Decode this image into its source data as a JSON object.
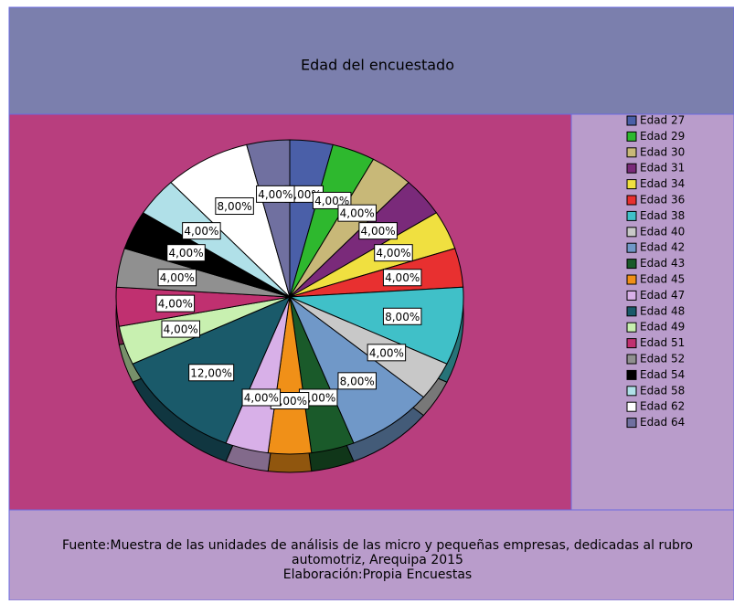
{
  "chart_data": {
    "type": "pie",
    "title": "Edad del encuestado",
    "categories": [
      "Edad 27",
      "Edad 29",
      "Edad 30",
      "Edad 31",
      "Edad 34",
      "Edad 36",
      "Edad 38",
      "Edad 40",
      "Edad 42",
      "Edad 43",
      "Edad 45",
      "Edad 47",
      "Edad 48",
      "Edad 49",
      "Edad 51",
      "Edad 52",
      "Edad 54",
      "Edad 58",
      "Edad 62",
      "Edad 64"
    ],
    "values": [
      4,
      4,
      4,
      4,
      4,
      4,
      8,
      4,
      8,
      4,
      4,
      4,
      12,
      4,
      4,
      4,
      4,
      4,
      8,
      4
    ],
    "value_labels": [
      "4,00%",
      "4,00%",
      "4,00%",
      "4,00%",
      "4,00%",
      "4,00%",
      "8,00%",
      "4,00%",
      "8,00%",
      "4,00%",
      "4,00%",
      "4,00%",
      "12,00%",
      "4,00%",
      "4,00%",
      "4,00%",
      "4,00%",
      "4,00%",
      "8,00%",
      "4,00%"
    ],
    "colors": [
      "#4a5fa8",
      "#2eb82e",
      "#c8b878",
      "#7a2a7a",
      "#f0e040",
      "#e83030",
      "#40c0c8",
      "#c8c8c8",
      "#7098c8",
      "#1a5a2a",
      "#f09018",
      "#d8b0e8",
      "#1a5a6a",
      "#c8f0b0",
      "#c03070",
      "#909090",
      "#000000",
      "#b0e0e8",
      "#ffffff",
      "#7070a0"
    ],
    "footnote": [
      "Fuente:Muestra de las unidades de análisis de las micro y pequeñas empresas, dedicadas al rubro",
      "automotriz, Arequipa 2015",
      "Elaboración:Propia Encuestas"
    ]
  }
}
